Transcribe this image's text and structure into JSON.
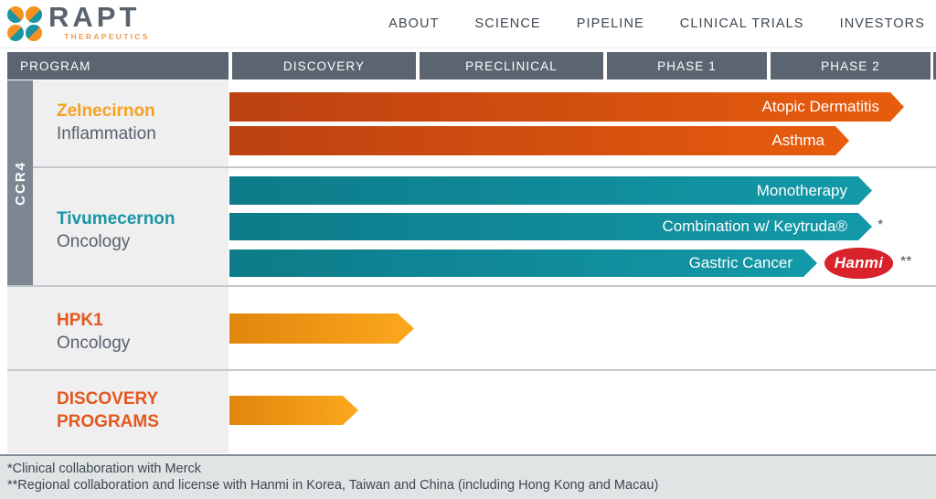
{
  "brand": {
    "name": "RAPT",
    "subtitle": "THERAPEUTICS"
  },
  "nav": {
    "items": [
      "ABOUT",
      "SCIENCE",
      "PIPELINE",
      "CLINICAL TRIALS",
      "INVESTORS"
    ]
  },
  "phase_columns": [
    "PROGRAM",
    "DISCOVERY",
    "PRECLINICAL",
    "PHASE 1",
    "PHASE 2"
  ],
  "pipeline": {
    "target_group": "CCR4",
    "programs": [
      {
        "name": "Zelnecirnon",
        "focus": "Inflammation",
        "bars": [
          {
            "label": "Atopic Dermatitis",
            "reaches": "Phase 2 (late)"
          },
          {
            "label": "Asthma",
            "reaches": "Phase 2 (mid)"
          }
        ]
      },
      {
        "name": "Tivumecernon",
        "focus": "Oncology",
        "bars": [
          {
            "label": "Monotherapy",
            "reaches": "Phase 2 (mid)"
          },
          {
            "label": "Combination w/ Keytruda®",
            "note": "*",
            "reaches": "Phase 2 (mid)"
          },
          {
            "label": "Gastric Cancer",
            "note": "**",
            "partner_badge": "Hanmi",
            "reaches": "Phase 2 (early)"
          }
        ]
      },
      {
        "name": "HPK1",
        "focus": "Oncology",
        "bars": [
          {
            "label": "",
            "reaches": "Discovery (late)"
          }
        ]
      },
      {
        "name": "DISCOVERY PROGRAMS",
        "focus": "",
        "bars": [
          {
            "label": "",
            "reaches": "Discovery (mid)"
          }
        ]
      }
    ]
  },
  "footnotes": {
    "line1": "*Clinical collaboration with Merck",
    "line2": "**Regional collaboration and license with Hanmi in Korea, Taiwan and China (including Hong Kong and Macau)"
  },
  "colors": {
    "header_slate": "#5b6470",
    "target_bar_gray": "#7d8692",
    "panel_gray": "#efeff0",
    "bar_red_gradient": [
      "#bc4112",
      "#e85c0c"
    ],
    "bar_teal_gradient": [
      "#0d7b89",
      "#1399a8"
    ],
    "bar_orange_gradient": [
      "#e0860d",
      "#fca81d"
    ],
    "amber_text": "#f6a11f",
    "teal_text": "#1795a3",
    "rust_text": "#e4571e",
    "hanmi_red": "#d8232b",
    "footer_bg": "#e0e4e5"
  }
}
